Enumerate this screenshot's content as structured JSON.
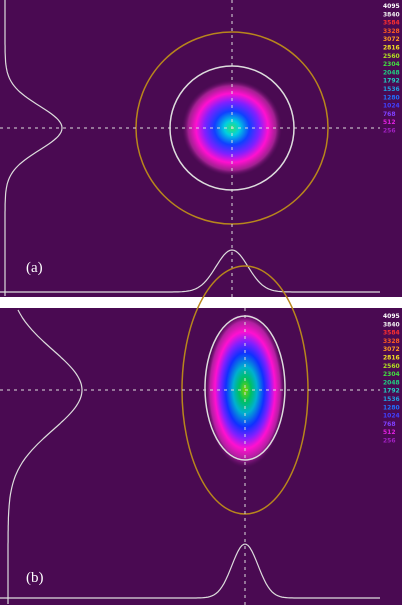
{
  "panels": [
    {
      "label": "(a)",
      "scale": [
        "4095",
        "3840",
        "3584",
        "3328",
        "3072",
        "2816",
        "2560",
        "2304",
        "2048",
        "1792",
        "1536",
        "1280",
        "1024",
        "768",
        "512",
        "256"
      ]
    },
    {
      "label": "(b)",
      "scale": [
        "4095",
        "3840",
        "3584",
        "3328",
        "3072",
        "2816",
        "2560",
        "2304",
        "2048",
        "1792",
        "1536",
        "1280",
        "1024",
        "768",
        "512",
        "256"
      ]
    }
  ]
}
